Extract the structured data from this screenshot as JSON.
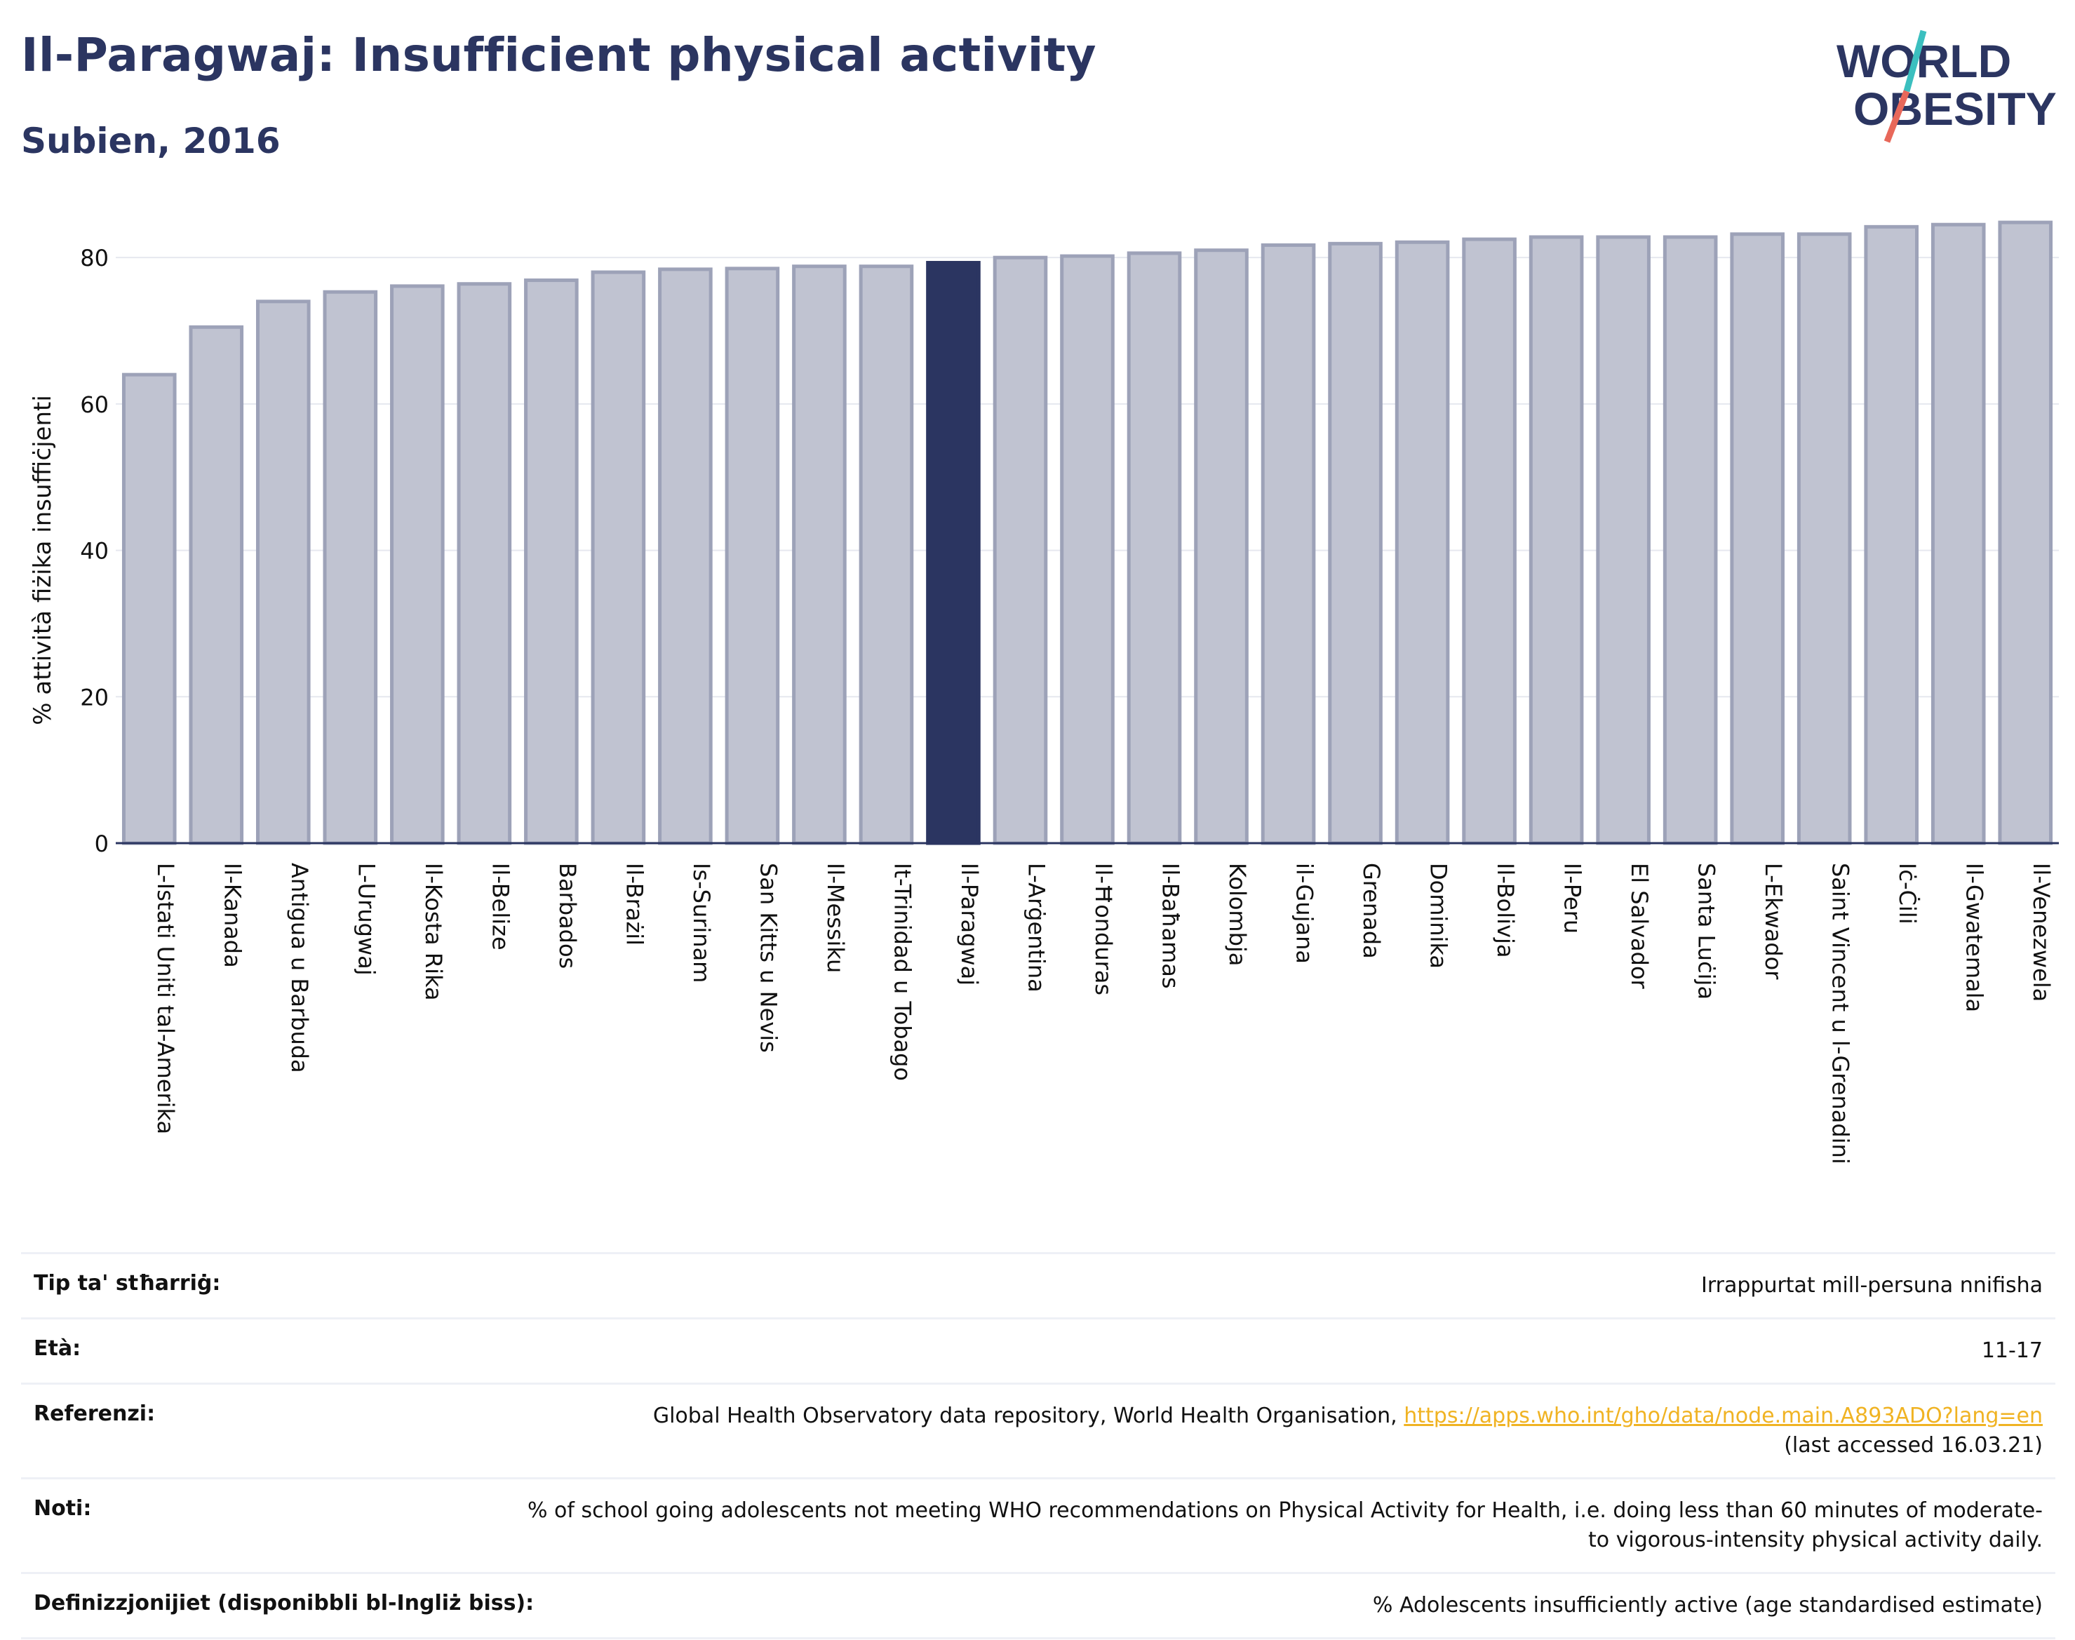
{
  "header": {
    "title": "Il-Paragwaj: Insufficient physical activity",
    "subtitle": "Subien, 2016"
  },
  "logo": {
    "line1": "WORLD",
    "line2": "OBESITY",
    "text_color": "#2b3561",
    "slash_top_color": "#3bbfbf",
    "slash_bottom_color": "#e8685a"
  },
  "colors": {
    "bar": "#c0c3d1",
    "bar_border": "#9da2b8",
    "highlight": "#2b3561",
    "gridline": "#e6e8ef",
    "axis": "#2b3561"
  },
  "chart_data": {
    "type": "bar",
    "ylabel": "% attività fiżika insuffiċjenti",
    "xlabel": "",
    "ylim": [
      0,
      85
    ],
    "yticks": [
      0,
      20,
      40,
      60,
      80
    ],
    "grid": true,
    "highlight_category": "Il-Paragwaj",
    "categories": [
      "L-Istati Uniti tal-Amerika",
      "Il-Kanada",
      "Antigua u Barbuda",
      "L-Urugwaj",
      "Il-Kosta Rika",
      "Il-Belize",
      "Barbados",
      "Il-Brażil",
      "Is-Surinam",
      "San Kitts u Nevis",
      "Il-Messiku",
      "It-Trinidad u Tobago",
      "Il-Paragwaj",
      "L-Arġentina",
      "Il-Ħonduras",
      "Il-Baħamas",
      "Kolombja",
      "il-Gujana",
      "Grenada",
      "Dominika",
      "Il-Bolivja",
      "Il-Peru",
      "El Salvador",
      "Santa Luċija",
      "L-Ekwador",
      "Saint Vincent u l-Grenadini",
      "Iċ-Ċili",
      "Il-Gwatemala",
      "Il-Venezwela"
    ],
    "values": [
      64.0,
      70.5,
      74.0,
      75.3,
      76.1,
      76.4,
      76.9,
      78.0,
      78.4,
      78.5,
      78.8,
      78.8,
      79.3,
      80.0,
      80.2,
      80.6,
      81.0,
      81.7,
      81.9,
      82.1,
      82.5,
      82.8,
      82.8,
      82.8,
      83.2,
      83.2,
      84.2,
      84.5,
      84.8
    ]
  },
  "info_table": {
    "rows": [
      {
        "label": "Tip ta' stħarriġ:",
        "value": "Irrappurtat mill-persuna nnifisha"
      },
      {
        "label": "Età:",
        "value": "11-17"
      },
      {
        "label": "Referenzi:",
        "value": "Global Health Observatory data repository, World Health Organisation,",
        "link": "https://apps.who.int/gho/data/node.main.A893ADO?lang=en",
        "value2": "(last accessed 16.03.21)"
      },
      {
        "label": "Noti:",
        "value": "% of school going adolescents not meeting WHO recommendations on Physical Activity for Health, i.e. doing less than 60 minutes of moderate- to vigorous-intensity physical activity daily."
      },
      {
        "label": "Definizzjonijiet (disponibbli bl-Ingliż biss):",
        "value": "% Adolescents insufficiently active (age standardised estimate)"
      }
    ]
  }
}
